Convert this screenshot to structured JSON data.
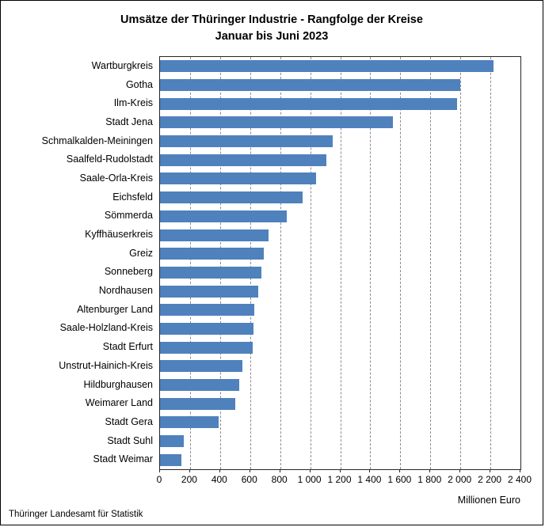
{
  "chart_data": {
    "type": "bar",
    "orientation": "horizontal",
    "title": "Umsätze der Thüringer Industrie - Rangfolge der Kreise",
    "subtitle": "Januar bis Juni 2023",
    "xlabel": "Millionen Euro",
    "ylabel": "",
    "xlim": [
      0,
      2400
    ],
    "grid": "vertical-dashed",
    "legend": "none",
    "bar_color": "#4f81bd",
    "categories": [
      "Wartburgkreis",
      "Gotha",
      "Ilm-Kreis",
      "Stadt Jena",
      "Schmalkalden-Meiningen",
      "Saalfeld-Rudolstadt",
      "Saale-Orla-Kreis",
      "Eichsfeld",
      "Sömmerda",
      "Kyffhäuserkreis",
      "Greiz",
      "Sonneberg",
      "Nordhausen",
      "Altenburger Land",
      "Saale-Holzland-Kreis",
      "Stadt Erfurt",
      "Unstrut-Hainich-Kreis",
      "Hildburghausen",
      "Weimarer Land",
      "Stadt Gera",
      "Stadt Suhl",
      "Stadt Weimar"
    ],
    "values": [
      2220,
      2000,
      1980,
      1550,
      1150,
      1110,
      1040,
      950,
      845,
      720,
      690,
      675,
      655,
      630,
      620,
      615,
      550,
      525,
      500,
      390,
      160,
      140
    ],
    "xticks": {
      "values": [
        0,
        200,
        400,
        600,
        800,
        1000,
        1200,
        1400,
        1600,
        1800,
        2000,
        2200,
        2400
      ],
      "labels": [
        "0",
        "200",
        "400",
        "600",
        "800",
        "1 000",
        "1 200",
        "1 400",
        "1 600",
        "1 800",
        "2 000",
        "2 200",
        "2 400"
      ]
    }
  },
  "footer": "Thüringer Landesamt für Statistik"
}
